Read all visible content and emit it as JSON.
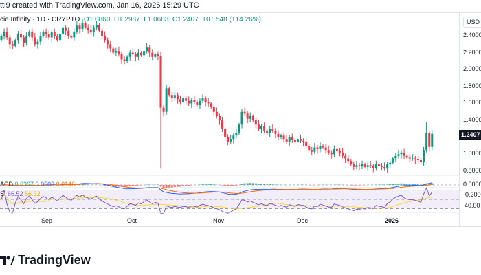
{
  "header": {
    "credit": "tti9 created with TradingView.com, Jan 16, 2026 15:29 UTC"
  },
  "legend": {
    "symbol": "cie Infinity · 1D · CRYPTO",
    "o": "O1.0860",
    "h": "H1.2987",
    "l": "L1.0683",
    "c": "C1.2407",
    "change": "+0.1548 (+14.26%)"
  },
  "macd": {
    "label": "ACD",
    "hist": "0.0367",
    "macd": "0.0503",
    "signal": "0.0146"
  },
  "rsi": {
    "label": "SI",
    "rsi": "66.52",
    "ma": "56.32"
  },
  "axis": {
    "currency": "USD",
    "last_price": "1.2407",
    "macd_ticks": [
      "0.0000",
      "-0.2000"
    ],
    "rsi_ticks": [
      "40.00"
    ]
  },
  "logo": {
    "text": "TradingView"
  },
  "colors": {
    "up": "#089981",
    "down": "#f23645",
    "macd": "#2962ff",
    "signal": "#ff6d00",
    "rsi": "#7e57c2",
    "rsi_ma": "#fdd835"
  },
  "chart_data": {
    "type": "candlestick",
    "title": "cie Infinity · 1D · CRYPTO",
    "x_start": "Aug 15, 2025",
    "x_end": "Jan 16, 2026",
    "xticks": [
      "Sep",
      "Oct",
      "Nov",
      "Dec",
      "2026"
    ],
    "yticks": [
      "2.4000",
      "2.2000",
      "2.0000",
      "1.8000",
      "1.6000",
      "1.4000",
      "1.0000",
      "0.8000"
    ],
    "ylim": [
      0.78,
      2.55
    ],
    "closes": [
      2.4,
      2.45,
      2.38,
      2.3,
      2.28,
      2.35,
      2.42,
      2.38,
      2.32,
      2.4,
      2.45,
      2.38,
      2.3,
      2.33,
      2.4,
      2.45,
      2.42,
      2.38,
      2.44,
      2.4,
      2.35,
      2.42,
      2.5,
      2.46,
      2.4,
      2.38,
      2.45,
      2.52,
      2.48,
      2.55,
      2.5,
      2.47,
      2.44,
      2.5,
      2.53,
      2.46,
      2.4,
      2.35,
      2.3,
      2.25,
      2.2,
      2.22,
      2.18,
      2.12,
      2.1,
      2.15,
      2.2,
      2.18,
      2.15,
      2.2,
      2.17,
      2.22,
      2.26,
      2.2,
      2.15,
      2.18,
      2.16,
      1.55,
      1.5,
      1.78,
      1.7,
      1.66,
      1.7,
      1.65,
      1.62,
      1.66,
      1.63,
      1.6,
      1.64,
      1.62,
      1.58,
      1.63,
      1.66,
      1.62,
      1.6,
      1.56,
      1.5,
      1.45,
      1.4,
      1.3,
      1.2,
      1.15,
      1.18,
      1.22,
      1.25,
      1.35,
      1.5,
      1.48,
      1.42,
      1.45,
      1.4,
      1.35,
      1.3,
      1.33,
      1.28,
      1.25,
      1.3,
      1.28,
      1.24,
      1.2,
      1.22,
      1.18,
      1.15,
      1.2,
      1.17,
      1.14,
      1.18,
      1.16,
      1.15,
      1.1,
      1.05,
      1.03,
      1.08,
      1.06,
      1.1,
      1.08,
      1.05,
      1.02,
      1.0,
      1.06,
      1.04,
      1.02,
      0.98,
      0.95,
      0.92,
      0.88,
      0.85,
      0.87,
      0.86,
      0.88,
      0.85,
      0.87,
      0.86,
      0.84,
      0.88,
      0.86,
      0.85,
      0.83,
      0.88,
      0.9,
      0.95,
      0.98,
      1.0,
      1.02,
      0.98,
      0.96,
      0.95,
      0.95,
      0.94,
      0.93,
      0.91,
      1.05,
      1.25,
      1.086,
      1.2407
    ],
    "special_lows": [
      {
        "index": 57,
        "low": 0.83
      },
      {
        "index": 152,
        "high": 1.38
      }
    ]
  }
}
